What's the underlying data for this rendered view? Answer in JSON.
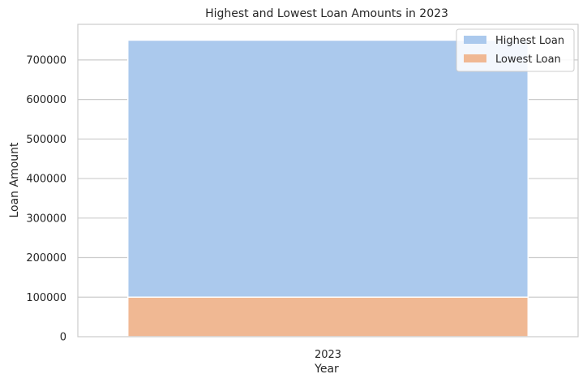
{
  "chart_data": {
    "type": "bar",
    "title": "Highest and Lowest Loan Amounts in 2023",
    "xlabel": "Year",
    "ylabel": "Loan Amount",
    "categories": [
      "2023"
    ],
    "series": [
      {
        "name": "Highest Loan",
        "values": [
          750000
        ],
        "color": "#abc9ed"
      },
      {
        "name": "Lowest Loan",
        "values": [
          100000
        ],
        "color": "#f0b893"
      }
    ],
    "ylim": [
      0,
      790000
    ],
    "yticks": [
      0,
      100000,
      200000,
      300000,
      400000,
      500000,
      600000,
      700000
    ],
    "grid": true,
    "legend_position": "top-right"
  }
}
